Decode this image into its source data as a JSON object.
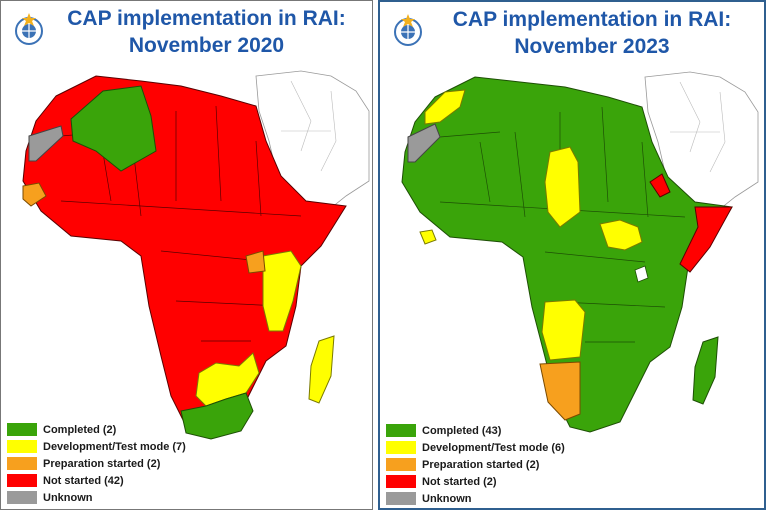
{
  "colors": {
    "completed": "#3aa40a",
    "development": "#ffff00",
    "preparation": "#f7a01e",
    "not_started": "#ff0000",
    "unknown": "#9a9a9a",
    "title": "#1f57a8"
  },
  "icons": {
    "logo": "wmo-emblem-icon"
  },
  "panels": [
    {
      "title_line1": "CAP implementation in RAI:",
      "title_line2": "November 2020",
      "legend": [
        {
          "key": "completed",
          "label": "Completed (2)"
        },
        {
          "key": "development",
          "label": "Development/Test mode (7)"
        },
        {
          "key": "preparation",
          "label": "Preparation started (2)"
        },
        {
          "key": "not_started",
          "label": "Not started (42)"
        },
        {
          "key": "unknown",
          "label": "Unknown"
        }
      ]
    },
    {
      "title_line1": "CAP implementation in RAI:",
      "title_line2": "November 2023",
      "legend": [
        {
          "key": "completed",
          "label": "Completed (43)"
        },
        {
          "key": "development",
          "label": "Development/Test mode (6)"
        },
        {
          "key": "preparation",
          "label": "Preparation started (2)"
        },
        {
          "key": "not_started",
          "label": "Not started (2)"
        },
        {
          "key": "unknown",
          "label": "Unknown"
        }
      ]
    }
  ]
}
